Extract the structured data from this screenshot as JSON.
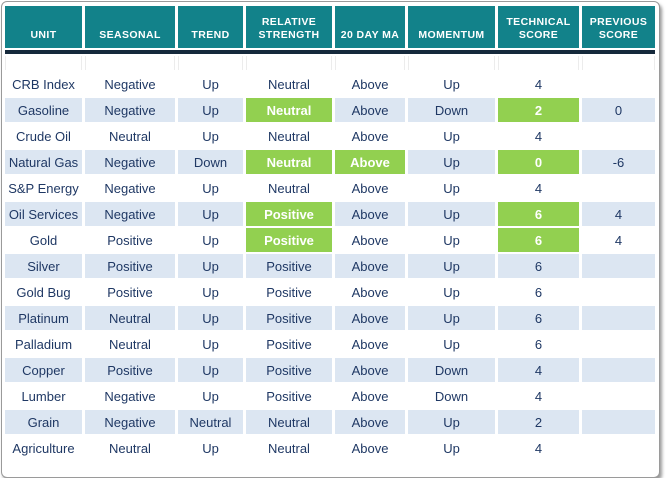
{
  "title": "Commodity technical score table",
  "colors": {
    "header_bg": "#12828A",
    "header_text": "#FFFFFF",
    "underline": "#15293B",
    "highlight": "#92D050",
    "row_alt": "#DCE6F2",
    "row_main": "#FFFFFF",
    "text": "#1F3864"
  },
  "chart_data": {
    "type": "table",
    "columns": [
      "UNIT",
      "SEASONAL",
      "TREND",
      "RELATIVE STRENGTH",
      "20 DAY MA",
      "MOMENTUM",
      "TECHNICAL SCORE",
      "PREVIOUS SCORE"
    ],
    "rows": [
      {
        "cells": [
          "CRB Index",
          "Negative",
          "Up",
          "Neutral",
          "Above",
          "Up",
          "4",
          ""
        ],
        "highlighted_cols": []
      },
      {
        "cells": [
          "Gasoline",
          "Negative",
          "Up",
          "Neutral",
          "Above",
          "Down",
          "2",
          "0"
        ],
        "highlighted_cols": [
          3,
          6
        ]
      },
      {
        "cells": [
          "Crude Oil",
          "Neutral",
          "Up",
          "Neutral",
          "Above",
          "Up",
          "4",
          ""
        ],
        "highlighted_cols": []
      },
      {
        "cells": [
          "Natural Gas",
          "Negative",
          "Down",
          "Neutral",
          "Above",
          "Up",
          "0",
          "-6"
        ],
        "highlighted_cols": [
          3,
          4,
          6
        ]
      },
      {
        "cells": [
          "S&P Energy",
          "Negative",
          "Up",
          "Neutral",
          "Above",
          "Up",
          "4",
          ""
        ],
        "highlighted_cols": []
      },
      {
        "cells": [
          "Oil Services",
          "Negative",
          "Up",
          "Positive",
          "Above",
          "Up",
          "6",
          "4"
        ],
        "highlighted_cols": [
          3,
          6
        ]
      },
      {
        "cells": [
          "Gold",
          "Positive",
          "Up",
          "Positive",
          "Above",
          "Up",
          "6",
          "4"
        ],
        "highlighted_cols": [
          3,
          6
        ]
      },
      {
        "cells": [
          "Silver",
          "Positive",
          "Up",
          "Positive",
          "Above",
          "Up",
          "6",
          ""
        ],
        "highlighted_cols": []
      },
      {
        "cells": [
          "Gold Bug",
          "Positive",
          "Up",
          "Positive",
          "Above",
          "Up",
          "6",
          ""
        ],
        "highlighted_cols": []
      },
      {
        "cells": [
          "Platinum",
          "Neutral",
          "Up",
          "Positive",
          "Above",
          "Up",
          "6",
          ""
        ],
        "highlighted_cols": []
      },
      {
        "cells": [
          "Palladium",
          "Neutral",
          "Up",
          "Positive",
          "Above",
          "Up",
          "6",
          ""
        ],
        "highlighted_cols": []
      },
      {
        "cells": [
          "Copper",
          "Positive",
          "Up",
          "Positive",
          "Above",
          "Down",
          "4",
          ""
        ],
        "highlighted_cols": []
      },
      {
        "cells": [
          "Lumber",
          "Negative",
          "Up",
          "Positive",
          "Above",
          "Down",
          "4",
          ""
        ],
        "highlighted_cols": []
      },
      {
        "cells": [
          "Grain",
          "Negative",
          "Neutral",
          "Neutral",
          "Above",
          "Up",
          "2",
          ""
        ],
        "highlighted_cols": []
      },
      {
        "cells": [
          "Agriculture",
          "Neutral",
          "Up",
          "Neutral",
          "Above",
          "Up",
          "4",
          ""
        ],
        "highlighted_cols": []
      }
    ]
  }
}
